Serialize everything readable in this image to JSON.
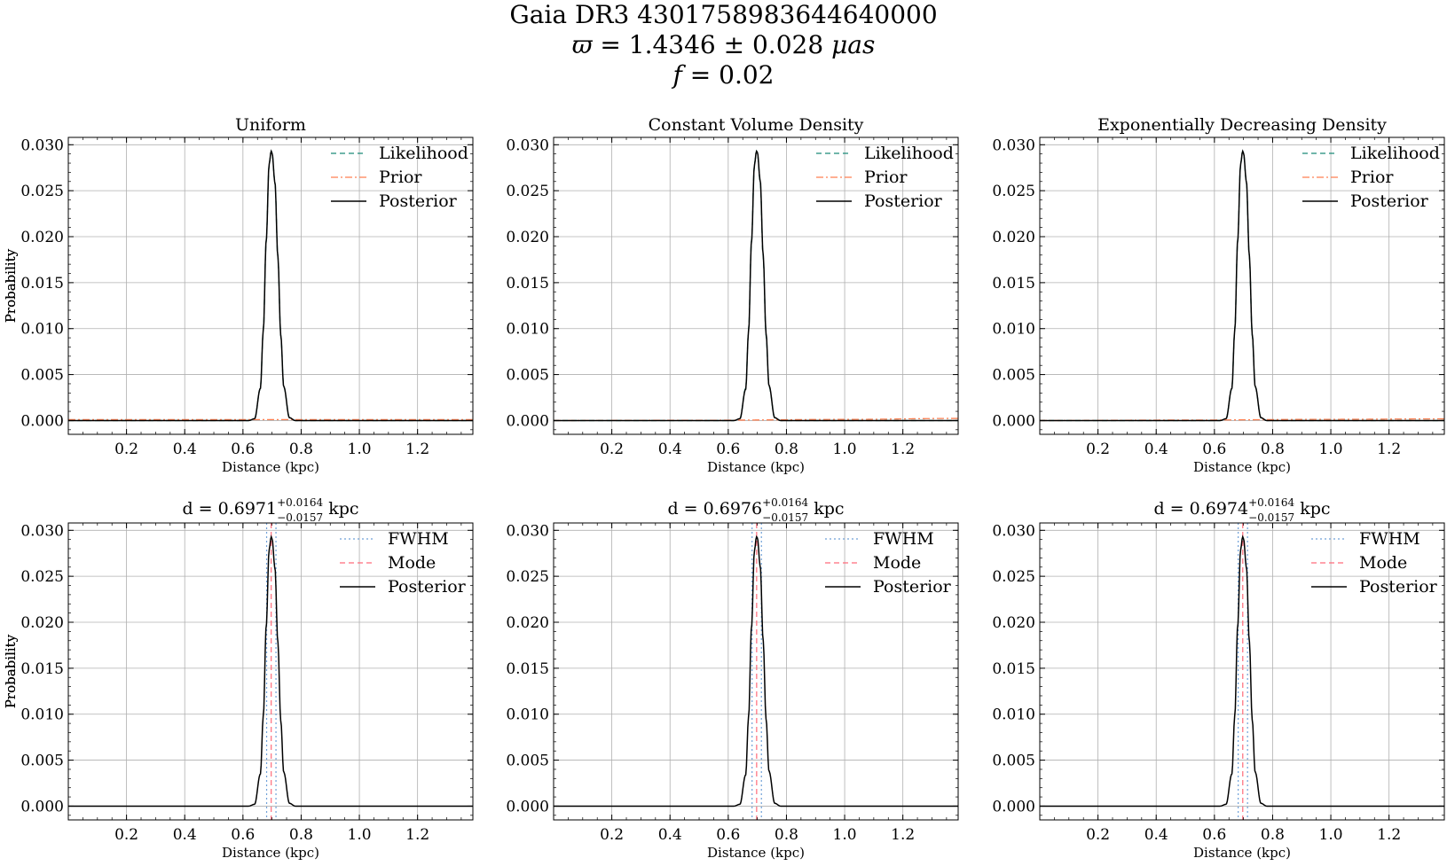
{
  "figure": {
    "title_line1": "Gaia DR3 4301758983644640000",
    "title_line2_symbol": "ϖ",
    "title_line2_text": " = 1.4346 ± 0.028 ",
    "title_line2_unit": "μas",
    "title_line3_var": "f",
    "title_line3_text": " = 0.02"
  },
  "colors": {
    "likelihood": "#1a8a78",
    "prior": "#ff7f50",
    "posterior": "#000000",
    "fwhm": "#6fa0d8",
    "mode": "#ff6b7a",
    "grid": "#b0b0b0"
  },
  "chart_data": [
    {
      "type": "line",
      "title": "Uniform",
      "xlabel": "Distance (kpc)",
      "ylabel": "Probability",
      "xlim": [
        0.0,
        1.39
      ],
      "ylim": [
        -0.0015,
        0.0308
      ],
      "xticks": [
        0.2,
        0.4,
        0.6,
        0.8,
        1.0,
        1.2
      ],
      "xtick_labels": [
        "0.2",
        "0.4",
        "0.6",
        "0.8",
        "1.0",
        "1.2"
      ],
      "yticks": [
        0.0,
        0.005,
        0.01,
        0.015,
        0.02,
        0.025,
        0.03
      ],
      "ytick_labels": [
        "0.000",
        "0.005",
        "0.010",
        "0.015",
        "0.020",
        "0.025",
        "0.030"
      ],
      "grid": true,
      "legend": "top-right",
      "series": [
        {
          "name": "Likelihood",
          "style": "dashed",
          "color_key": "likelihood",
          "x": [
            0.0,
            0.62,
            0.64,
            0.66,
            0.67,
            0.68,
            0.69,
            0.697,
            0.7,
            0.71,
            0.72,
            0.73,
            0.74,
            0.76,
            0.78,
            1.39
          ],
          "y": [
            0.0,
            0.0,
            0.0002,
            0.0035,
            0.0098,
            0.0196,
            0.0279,
            0.0293,
            0.0291,
            0.0259,
            0.0178,
            0.0093,
            0.0037,
            0.0003,
            0.0,
            0.0
          ]
        },
        {
          "name": "Prior",
          "style": "dashdot",
          "color_key": "prior",
          "x": [
            0.0,
            1.39
          ],
          "y": [
            0.0001,
            0.0001
          ]
        },
        {
          "name": "Posterior",
          "style": "solid",
          "color_key": "posterior",
          "x": [
            0.0,
            0.62,
            0.64,
            0.66,
            0.67,
            0.68,
            0.69,
            0.697,
            0.7,
            0.71,
            0.72,
            0.73,
            0.74,
            0.76,
            0.78,
            1.39
          ],
          "y": [
            0.0,
            0.0,
            0.0002,
            0.0035,
            0.0098,
            0.0196,
            0.0279,
            0.0293,
            0.0291,
            0.0259,
            0.0178,
            0.0093,
            0.0037,
            0.0003,
            0.0,
            0.0
          ]
        }
      ]
    },
    {
      "type": "line",
      "title": "Constant Volume Density",
      "xlabel": "Distance (kpc)",
      "ylabel": "Probability",
      "xlim": [
        0.0,
        1.39
      ],
      "ylim": [
        -0.0015,
        0.0308
      ],
      "xticks": [
        0.2,
        0.4,
        0.6,
        0.8,
        1.0,
        1.2
      ],
      "xtick_labels": [
        "0.2",
        "0.4",
        "0.6",
        "0.8",
        "1.0",
        "1.2"
      ],
      "yticks": [
        0.0,
        0.005,
        0.01,
        0.015,
        0.02,
        0.025,
        0.03
      ],
      "ytick_labels": [
        "0.000",
        "0.005",
        "0.010",
        "0.015",
        "0.020",
        "0.025",
        "0.030"
      ],
      "grid": true,
      "legend": "top-right",
      "series": [
        {
          "name": "Likelihood",
          "style": "dashed",
          "color_key": "likelihood",
          "x": [
            0.0,
            0.62,
            0.64,
            0.66,
            0.67,
            0.68,
            0.69,
            0.697,
            0.7,
            0.71,
            0.72,
            0.73,
            0.74,
            0.76,
            0.78,
            1.39
          ],
          "y": [
            0.0,
            0.0,
            0.0002,
            0.0035,
            0.0098,
            0.0196,
            0.0279,
            0.0293,
            0.0291,
            0.0259,
            0.0178,
            0.0093,
            0.0037,
            0.0003,
            0.0,
            0.0
          ]
        },
        {
          "name": "Prior",
          "style": "dashdot",
          "color_key": "prior",
          "x": [
            0.0,
            0.5,
            1.0,
            1.39
          ],
          "y": [
            0.0,
            3e-05,
            0.00012,
            0.00023
          ]
        },
        {
          "name": "Posterior",
          "style": "solid",
          "color_key": "posterior",
          "x": [
            0.0,
            0.62,
            0.64,
            0.66,
            0.67,
            0.68,
            0.69,
            0.697,
            0.7,
            0.71,
            0.72,
            0.73,
            0.74,
            0.76,
            0.78,
            1.39
          ],
          "y": [
            0.0,
            0.0,
            0.0002,
            0.0034,
            0.0097,
            0.0195,
            0.0278,
            0.0293,
            0.0292,
            0.0261,
            0.018,
            0.0095,
            0.0038,
            0.0003,
            0.0,
            0.0
          ]
        }
      ]
    },
    {
      "type": "line",
      "title": "Exponentially Decreasing Density",
      "xlabel": "Distance (kpc)",
      "ylabel": "Probability",
      "xlim": [
        0.0,
        1.39
      ],
      "ylim": [
        -0.0015,
        0.0308
      ],
      "xticks": [
        0.2,
        0.4,
        0.6,
        0.8,
        1.0,
        1.2
      ],
      "xtick_labels": [
        "0.2",
        "0.4",
        "0.6",
        "0.8",
        "1.0",
        "1.2"
      ],
      "yticks": [
        0.0,
        0.005,
        0.01,
        0.015,
        0.02,
        0.025,
        0.03
      ],
      "ytick_labels": [
        "0.000",
        "0.005",
        "0.010",
        "0.015",
        "0.020",
        "0.025",
        "0.030"
      ],
      "grid": true,
      "legend": "top-right",
      "series": [
        {
          "name": "Likelihood",
          "style": "dashed",
          "color_key": "likelihood",
          "x": [
            0.0,
            0.62,
            0.64,
            0.66,
            0.67,
            0.68,
            0.69,
            0.697,
            0.7,
            0.71,
            0.72,
            0.73,
            0.74,
            0.76,
            0.78,
            1.39
          ],
          "y": [
            0.0,
            0.0,
            0.0002,
            0.0035,
            0.0098,
            0.0196,
            0.0279,
            0.0293,
            0.0291,
            0.0259,
            0.0178,
            0.0093,
            0.0037,
            0.0003,
            0.0,
            0.0
          ]
        },
        {
          "name": "Prior",
          "style": "dashdot",
          "color_key": "prior",
          "x": [
            0.0,
            0.5,
            1.0,
            1.39
          ],
          "y": [
            0.0,
            5e-05,
            0.00013,
            0.00018
          ]
        },
        {
          "name": "Posterior",
          "style": "solid",
          "color_key": "posterior",
          "x": [
            0.0,
            0.62,
            0.64,
            0.66,
            0.67,
            0.68,
            0.69,
            0.697,
            0.7,
            0.71,
            0.72,
            0.73,
            0.74,
            0.76,
            0.78,
            1.39
          ],
          "y": [
            0.0,
            0.0,
            0.0002,
            0.0035,
            0.0098,
            0.0196,
            0.0279,
            0.0293,
            0.0291,
            0.026,
            0.0179,
            0.0094,
            0.0037,
            0.0003,
            0.0,
            0.0
          ]
        }
      ]
    },
    {
      "type": "line",
      "title_prefix": "d = 0.6971",
      "title_sup": "+0.0164",
      "title_sub": "−0.0157",
      "title_suffix": " kpc",
      "xlabel": "Distance (kpc)",
      "ylabel": "Probability",
      "xlim": [
        0.0,
        1.39
      ],
      "ylim": [
        -0.0015,
        0.0308
      ],
      "xticks": [
        0.2,
        0.4,
        0.6,
        0.8,
        1.0,
        1.2
      ],
      "xtick_labels": [
        "0.2",
        "0.4",
        "0.6",
        "0.8",
        "1.0",
        "1.2"
      ],
      "yticks": [
        0.0,
        0.005,
        0.01,
        0.015,
        0.02,
        0.025,
        0.03
      ],
      "ytick_labels": [
        "0.000",
        "0.005",
        "0.010",
        "0.015",
        "0.020",
        "0.025",
        "0.030"
      ],
      "grid": true,
      "legend": "top-right",
      "vlines": [
        {
          "name": "FWHM",
          "style": "dotted",
          "color_key": "fwhm",
          "x": [
            0.6814,
            0.7135
          ]
        },
        {
          "name": "Mode",
          "style": "dashed",
          "color_key": "mode",
          "x": [
            0.6971
          ]
        }
      ],
      "series": [
        {
          "name": "Posterior",
          "style": "solid",
          "color_key": "posterior",
          "x": [
            0.0,
            0.62,
            0.64,
            0.66,
            0.67,
            0.68,
            0.69,
            0.697,
            0.7,
            0.71,
            0.72,
            0.73,
            0.74,
            0.76,
            0.78,
            1.39
          ],
          "y": [
            0.0,
            0.0,
            0.0002,
            0.0035,
            0.0098,
            0.0196,
            0.0279,
            0.0293,
            0.0291,
            0.0259,
            0.0178,
            0.0093,
            0.0037,
            0.0003,
            0.0,
            0.0
          ]
        }
      ]
    },
    {
      "type": "line",
      "title_prefix": "d = 0.6976",
      "title_sup": "+0.0164",
      "title_sub": "−0.0157",
      "title_suffix": " kpc",
      "xlabel": "Distance (kpc)",
      "ylabel": "Probability",
      "xlim": [
        0.0,
        1.39
      ],
      "ylim": [
        -0.0015,
        0.0308
      ],
      "xticks": [
        0.2,
        0.4,
        0.6,
        0.8,
        1.0,
        1.2
      ],
      "xtick_labels": [
        "0.2",
        "0.4",
        "0.6",
        "0.8",
        "1.0",
        "1.2"
      ],
      "yticks": [
        0.0,
        0.005,
        0.01,
        0.015,
        0.02,
        0.025,
        0.03
      ],
      "ytick_labels": [
        "0.000",
        "0.005",
        "0.010",
        "0.015",
        "0.020",
        "0.025",
        "0.030"
      ],
      "grid": true,
      "legend": "top-right",
      "vlines": [
        {
          "name": "FWHM",
          "style": "dotted",
          "color_key": "fwhm",
          "x": [
            0.6819,
            0.714
          ]
        },
        {
          "name": "Mode",
          "style": "dashed",
          "color_key": "mode",
          "x": [
            0.6976
          ]
        }
      ],
      "series": [
        {
          "name": "Posterior",
          "style": "solid",
          "color_key": "posterior",
          "x": [
            0.0,
            0.62,
            0.64,
            0.66,
            0.67,
            0.68,
            0.69,
            0.697,
            0.7,
            0.71,
            0.72,
            0.73,
            0.74,
            0.76,
            0.78,
            1.39
          ],
          "y": [
            0.0,
            0.0,
            0.0002,
            0.0034,
            0.0097,
            0.0195,
            0.0278,
            0.0293,
            0.0292,
            0.0261,
            0.018,
            0.0095,
            0.0038,
            0.0003,
            0.0,
            0.0
          ]
        }
      ]
    },
    {
      "type": "line",
      "title_prefix": "d = 0.6974",
      "title_sup": "+0.0164",
      "title_sub": "−0.0157",
      "title_suffix": " kpc",
      "xlabel": "Distance (kpc)",
      "ylabel": "Probability",
      "xlim": [
        0.0,
        1.39
      ],
      "ylim": [
        -0.0015,
        0.0308
      ],
      "xticks": [
        0.2,
        0.4,
        0.6,
        0.8,
        1.0,
        1.2
      ],
      "xtick_labels": [
        "0.2",
        "0.4",
        "0.6",
        "0.8",
        "1.0",
        "1.2"
      ],
      "yticks": [
        0.0,
        0.005,
        0.01,
        0.015,
        0.02,
        0.025,
        0.03
      ],
      "ytick_labels": [
        "0.000",
        "0.005",
        "0.010",
        "0.015",
        "0.020",
        "0.025",
        "0.030"
      ],
      "grid": true,
      "legend": "top-right",
      "vlines": [
        {
          "name": "FWHM",
          "style": "dotted",
          "color_key": "fwhm",
          "x": [
            0.6817,
            0.7138
          ]
        },
        {
          "name": "Mode",
          "style": "dashed",
          "color_key": "mode",
          "x": [
            0.6974
          ]
        }
      ],
      "series": [
        {
          "name": "Posterior",
          "style": "solid",
          "color_key": "posterior",
          "x": [
            0.0,
            0.62,
            0.64,
            0.66,
            0.67,
            0.68,
            0.69,
            0.697,
            0.7,
            0.71,
            0.72,
            0.73,
            0.74,
            0.76,
            0.78,
            1.39
          ],
          "y": [
            0.0,
            0.0,
            0.0002,
            0.0035,
            0.0098,
            0.0196,
            0.0279,
            0.0293,
            0.0291,
            0.026,
            0.0179,
            0.0094,
            0.0037,
            0.0003,
            0.0,
            0.0
          ]
        }
      ]
    }
  ]
}
